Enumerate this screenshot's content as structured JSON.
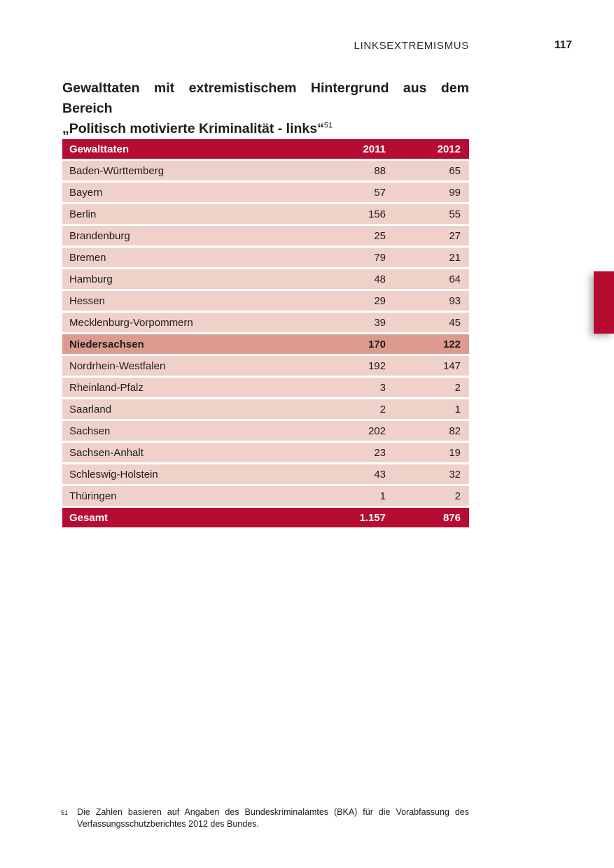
{
  "page": {
    "running_head": "LINKSEXTREMISMUS",
    "page_number": "117"
  },
  "title": {
    "line1": "Gewalttaten mit extremistischem Hintergrund aus dem Bereich",
    "line2": "„Politisch motivierte Kriminalität - links“",
    "footnote_ref": "51"
  },
  "table": {
    "header": {
      "label": "Gewalttaten",
      "col2011": "2011",
      "col2012": "2012"
    },
    "rows": [
      {
        "label": "Baden-Württemberg",
        "v2011": "88",
        "v2012": "65",
        "highlight": false
      },
      {
        "label": "Bayern",
        "v2011": "57",
        "v2012": "99",
        "highlight": false
      },
      {
        "label": "Berlin",
        "v2011": "156",
        "v2012": "55",
        "highlight": false
      },
      {
        "label": "Brandenburg",
        "v2011": "25",
        "v2012": "27",
        "highlight": false
      },
      {
        "label": "Bremen",
        "v2011": "79",
        "v2012": "21",
        "highlight": false
      },
      {
        "label": "Hamburg",
        "v2011": "48",
        "v2012": "64",
        "highlight": false
      },
      {
        "label": "Hessen",
        "v2011": "29",
        "v2012": "93",
        "highlight": false
      },
      {
        "label": "Mecklenburg-Vorpommern",
        "v2011": "39",
        "v2012": "45",
        "highlight": false
      },
      {
        "label": "Niedersachsen",
        "v2011": "170",
        "v2012": "122",
        "highlight": true
      },
      {
        "label": "Nordrhein-Westfalen",
        "v2011": "192",
        "v2012": "147",
        "highlight": false
      },
      {
        "label": "Rheinland-Pfalz",
        "v2011": "3",
        "v2012": "2",
        "highlight": false
      },
      {
        "label": "Saarland",
        "v2011": "2",
        "v2012": "1",
        "highlight": false
      },
      {
        "label": "Sachsen",
        "v2011": "202",
        "v2012": "82",
        "highlight": false
      },
      {
        "label": "Sachsen-Anhalt",
        "v2011": "23",
        "v2012": "19",
        "highlight": false
      },
      {
        "label": "Schleswig-Holstein",
        "v2011": "43",
        "v2012": "32",
        "highlight": false
      },
      {
        "label": "Thüringen",
        "v2011": "1",
        "v2012": "2",
        "highlight": false
      }
    ],
    "total": {
      "label": "Gesamt",
      "v2011": "1.157",
      "v2012": "876"
    }
  },
  "footnote": {
    "marker": "51",
    "text": "Die Zahlen basieren auf Angaben des Bundeskriminalamtes (BKA) für die Vorabfassung des Verfassungsschutzberichtes 2012 des Bundes."
  },
  "colors": {
    "accent_red": "#b60c32",
    "row_pink": "#f0d1c9",
    "highlight_rose": "#dd9a8f",
    "text": "#1d1d1b"
  }
}
